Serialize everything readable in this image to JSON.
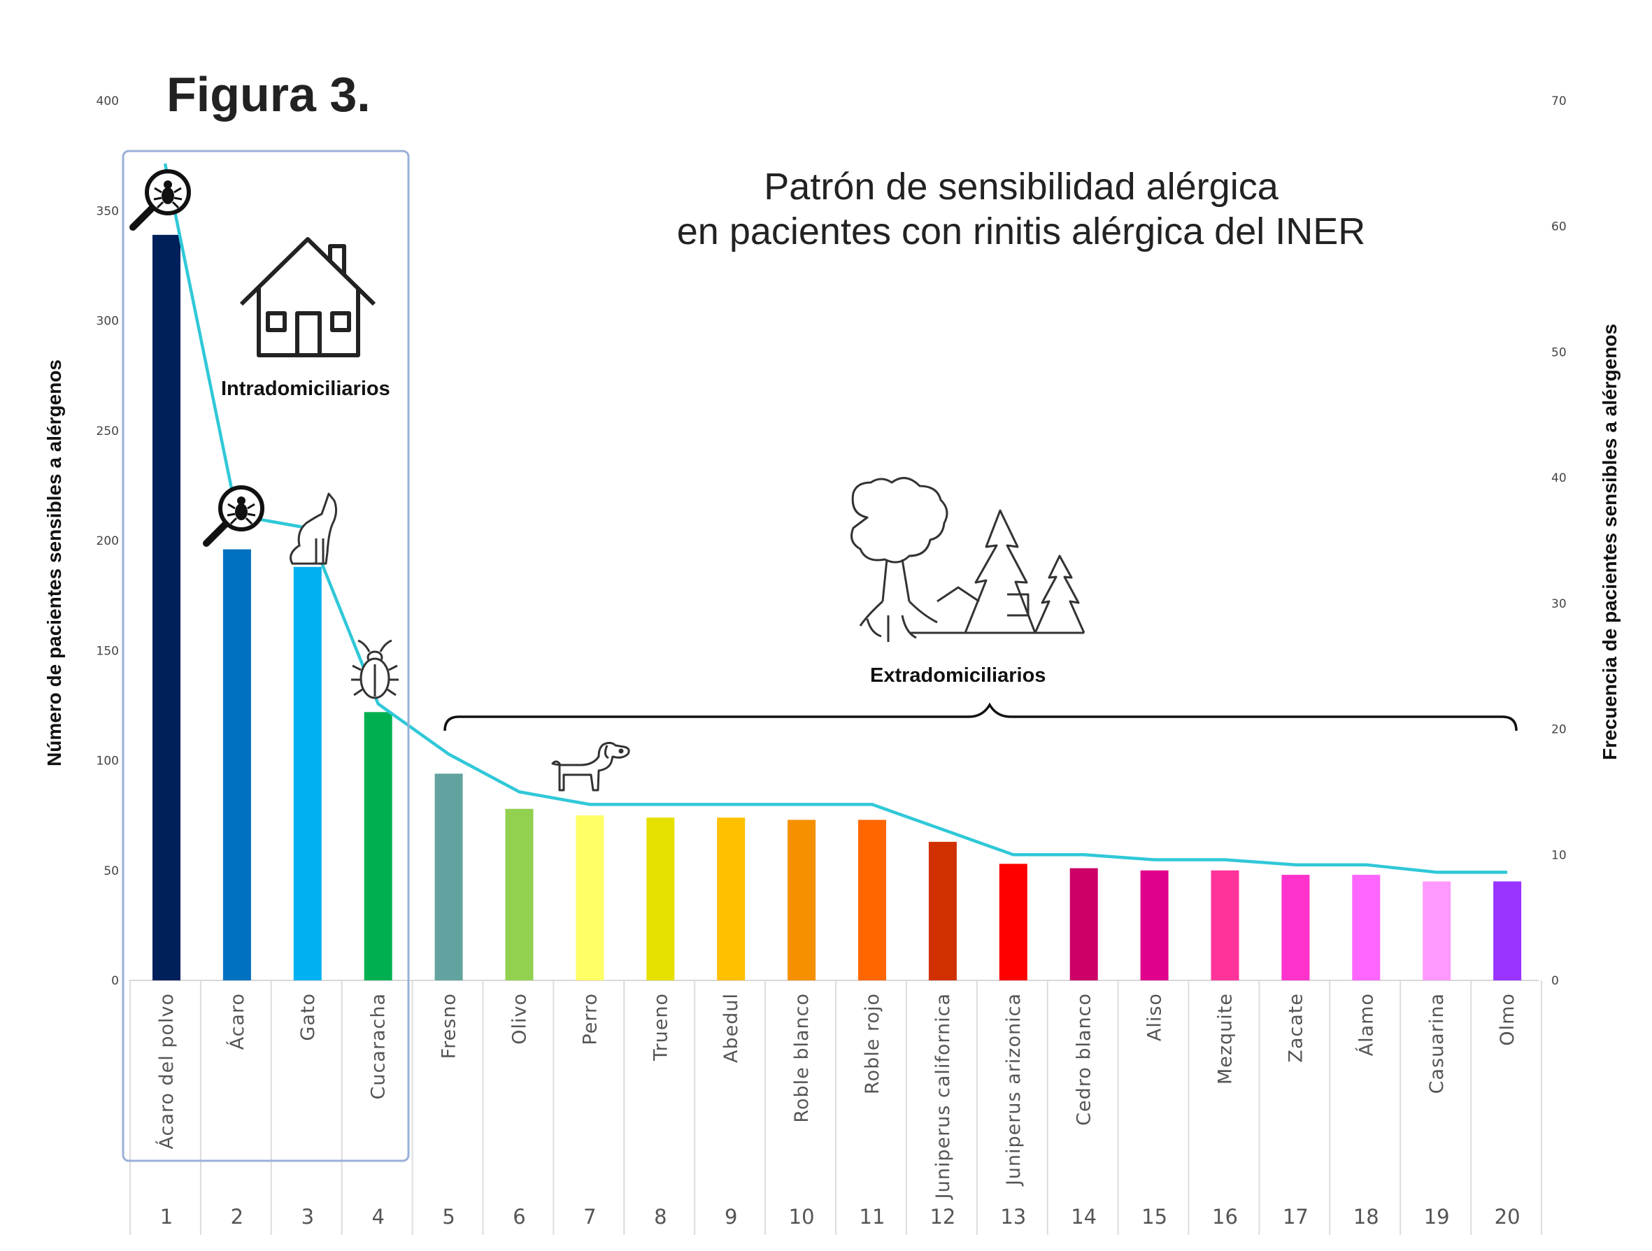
{
  "figure_label": "Figura 3.",
  "chart_data": {
    "type": "bar",
    "title_lines": [
      "Patrón de sensibilidad alérgica",
      "en pacientes con rinitis alérgica del INER"
    ],
    "ylabel": "Número de pacientes sensibles a alérgenos",
    "y2label": "Frecuencia de pacientes sensibles a alérgenos",
    "ylim": [
      0,
      400
    ],
    "y2lim": [
      0,
      70
    ],
    "yticks": [
      0,
      50,
      100,
      150,
      200,
      250,
      300,
      350,
      400
    ],
    "y2ticks": [
      0,
      10,
      20,
      30,
      40,
      50,
      60,
      70
    ],
    "groups": {
      "indoor": "Intradomiciliarios",
      "outdoor": "Extradomiciliarios"
    },
    "categories": [
      "Ácaro del polvo",
      "Ácaro",
      "Gato",
      "Cucaracha",
      "Fresno",
      "Olivo",
      "Perro",
      "Trueno",
      "Abedul",
      "Roble blanco",
      "Roble rojo",
      "Juniperus californica",
      "Juniperus arizonica",
      "Cedro blanco",
      "Aliso",
      "Mezquite",
      "Zacate",
      "Álamo",
      "Casuarina",
      "Olmo"
    ],
    "indices": [
      "1",
      "2",
      "3",
      "4",
      "5",
      "6",
      "7",
      "8",
      "9",
      "10",
      "11",
      "12",
      "13",
      "14",
      "15",
      "16",
      "17",
      "18",
      "19",
      "20"
    ],
    "series": [
      {
        "type": "bar",
        "axis": "left",
        "values": [
          339,
          196,
          188,
          122,
          94,
          78,
          75,
          74,
          74,
          73,
          73,
          63,
          53,
          51,
          50,
          50,
          48,
          48,
          45,
          45
        ]
      },
      {
        "type": "line",
        "axis": "right",
        "values": [
          65,
          37,
          36,
          22,
          18,
          15,
          14,
          14,
          14,
          14,
          14,
          12,
          10,
          10,
          9.6,
          9.6,
          9.2,
          9.2,
          8.6,
          8.6
        ]
      }
    ],
    "bar_colors": [
      "#00205b",
      "#0070c0",
      "#00b0f0",
      "#00b050",
      "#62a39f",
      "#92d050",
      "#ffff66",
      "#e6e000",
      "#ffc000",
      "#f79000",
      "#ff6600",
      "#d03000",
      "#ff0000",
      "#cc0066",
      "#e0008c",
      "#ff3399",
      "#ff33cc",
      "#ff66ff",
      "#ff99ff",
      "#9933ff"
    ],
    "line_color": "#30c8d8",
    "grid": false
  }
}
